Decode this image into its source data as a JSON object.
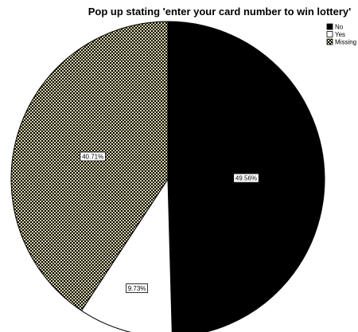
{
  "chart_data": {
    "type": "pie",
    "title": "Pop up stating 'enter your card number to win lottery'",
    "slices": [
      {
        "label": "No",
        "value": 49.56,
        "data_label": "49.56%",
        "fill": "#000000",
        "pattern": "solid"
      },
      {
        "label": "Yes",
        "value": 9.73,
        "data_label": "9.73%",
        "fill": "#ffffff",
        "pattern": "solid"
      },
      {
        "label": "Missing",
        "value": 40.71,
        "data_label": "40.71%",
        "fill": "#d8d2a8",
        "pattern": "checker"
      }
    ],
    "start_angle_deg": 0,
    "direction": "clockwise",
    "legend_position": "top-right"
  }
}
